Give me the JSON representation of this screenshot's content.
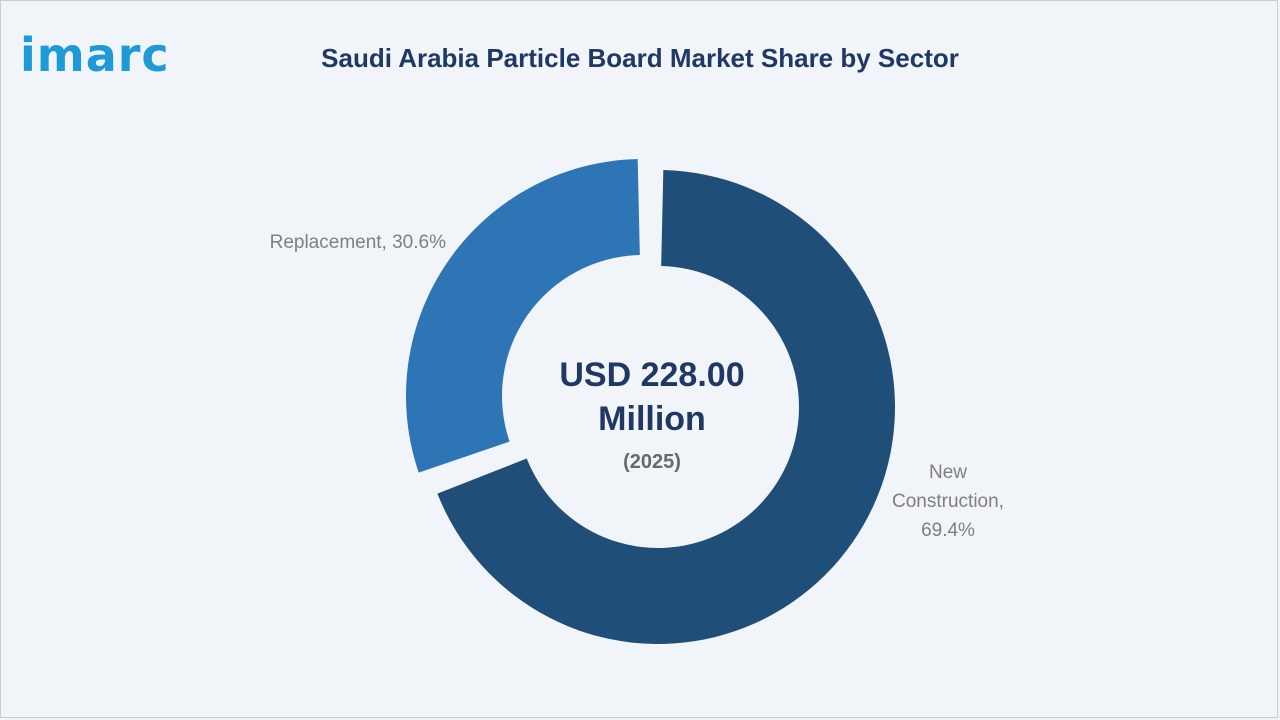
{
  "logo": {
    "text": "imarc",
    "color": "#1e9ad6"
  },
  "title": "Saudi Arabia Particle Board Market Share by Sector",
  "center": {
    "line1": "USD 228.00",
    "line2": "Million",
    "year": "(2025)"
  },
  "chart_data": {
    "type": "pie",
    "variant": "donut",
    "title": "Saudi Arabia Particle Board Market Share by Sector",
    "unit": "%",
    "slices": [
      {
        "label": "New Construction",
        "value": 69.4,
        "color": "#1f4e79",
        "label_lines": [
          "New",
          "Construction,",
          "69.4%"
        ]
      },
      {
        "label": "Replacement",
        "value": 30.6,
        "color": "#2e75b6",
        "label_lines": [
          "Replacement, 30.6%"
        ]
      }
    ]
  }
}
